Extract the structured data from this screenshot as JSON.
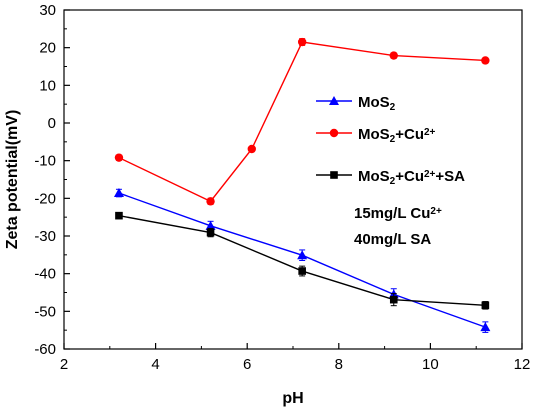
{
  "chart_data": {
    "type": "line",
    "xlabel": "pH",
    "ylabel": "Zeta potential(mV)",
    "xlim": [
      2,
      12
    ],
    "ylim": [
      -60,
      30
    ],
    "xticks": [
      2,
      4,
      6,
      8,
      10,
      12
    ],
    "yticks": [
      -60,
      -50,
      -40,
      -30,
      -20,
      -10,
      0,
      10,
      20,
      30
    ],
    "grid": false,
    "legend_position": "right-middle",
    "series": [
      {
        "name": "MoS2",
        "name_parts": [
          {
            "t": "MoS"
          },
          {
            "t": "2",
            "sub": true
          }
        ],
        "color": "#0000ff",
        "marker": "triangle",
        "x": [
          3.2,
          5.2,
          7.2,
          9.2,
          11.2
        ],
        "y": [
          -18.6,
          -27.3,
          -35.1,
          -45.5,
          -54.2
        ],
        "err": [
          1.0,
          1.2,
          1.4,
          1.5,
          1.4
        ]
      },
      {
        "name": "MoS2+Cu2+",
        "name_parts": [
          {
            "t": "MoS"
          },
          {
            "t": "2",
            "sub": true
          },
          {
            "t": "+Cu"
          },
          {
            "t": "2+",
            "sup": true
          }
        ],
        "color": "#ff0000",
        "marker": "circle",
        "x": [
          3.2,
          5.2,
          6.1,
          7.2,
          9.2,
          11.2
        ],
        "y": [
          -9.2,
          -20.8,
          -6.9,
          21.5,
          17.9,
          16.6
        ],
        "err": [
          0.5,
          0.8,
          0.5,
          0.9,
          0.7,
          0.6
        ]
      },
      {
        "name": "MoS2+Cu2++SA",
        "name_parts": [
          {
            "t": "MoS"
          },
          {
            "t": "2",
            "sub": true
          },
          {
            "t": "+Cu"
          },
          {
            "t": "2+",
            "sup": true
          },
          {
            "t": "+SA"
          }
        ],
        "color": "#000000",
        "marker": "square",
        "x": [
          3.2,
          5.2,
          7.2,
          9.2,
          11.2
        ],
        "y": [
          -24.6,
          -29.1,
          -39.3,
          -46.9,
          -48.4
        ],
        "err": [
          0.6,
          1.1,
          1.3,
          1.6,
          1.0
        ]
      }
    ],
    "annotations": [
      {
        "parts": [
          {
            "t": "15mg/L Cu"
          },
          {
            "t": "2+",
            "sup": true
          }
        ]
      },
      {
        "parts": [
          {
            "t": "40mg/L SA"
          }
        ]
      }
    ]
  }
}
